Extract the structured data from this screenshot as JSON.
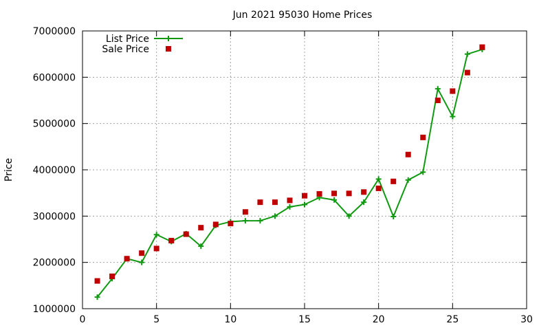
{
  "chart_data": {
    "type": "scatter",
    "title": "Jun 2021 95030 Home Prices",
    "xlabel": "",
    "ylabel": "Price",
    "xlim": [
      0,
      30
    ],
    "ylim": [
      1000000,
      7000000
    ],
    "x_ticks": [
      0,
      5,
      10,
      15,
      20,
      25,
      30
    ],
    "y_ticks": [
      1000000,
      2000000,
      3000000,
      4000000,
      5000000,
      6000000,
      7000000
    ],
    "x_tick_labels": [
      "0",
      "5",
      "10",
      "15",
      "20",
      "25",
      "30"
    ],
    "y_tick_labels": [
      "1000000",
      "2000000",
      "3000000",
      "4000000",
      "5000000",
      "6000000",
      "7000000"
    ],
    "grid": true,
    "legend_position": "top-left",
    "series": [
      {
        "name": "List Price",
        "style": "line-with-plus-markers",
        "color": "#109910",
        "x": [
          1,
          2,
          3,
          4,
          5,
          6,
          7,
          8,
          9,
          10,
          11,
          12,
          13,
          14,
          15,
          16,
          17,
          18,
          19,
          20,
          21,
          22,
          23,
          24,
          25,
          26,
          27
        ],
        "values": [
          1250000,
          1650000,
          2080000,
          2000000,
          2600000,
          2450000,
          2620000,
          2350000,
          2800000,
          2880000,
          2900000,
          2900000,
          3000000,
          3200000,
          3250000,
          3400000,
          3350000,
          3000000,
          3300000,
          3800000,
          2990000,
          3780000,
          3950000,
          5750000,
          5150000,
          6500000,
          6600000
        ]
      },
      {
        "name": "Sale Price",
        "style": "square-markers",
        "color": "#c00000",
        "x": [
          1,
          2,
          3,
          4,
          5,
          6,
          7,
          8,
          9,
          10,
          11,
          12,
          13,
          14,
          15,
          16,
          17,
          18,
          19,
          20,
          21,
          22,
          23,
          24,
          25,
          26,
          27
        ],
        "values": [
          1600000,
          1700000,
          2080000,
          2200000,
          2300000,
          2470000,
          2610000,
          2750000,
          2820000,
          2840000,
          3090000,
          3300000,
          3300000,
          3340000,
          3440000,
          3480000,
          3490000,
          3490000,
          3520000,
          3600000,
          3750000,
          4330000,
          4700000,
          5500000,
          5700000,
          6100000,
          6650000
        ]
      }
    ]
  }
}
